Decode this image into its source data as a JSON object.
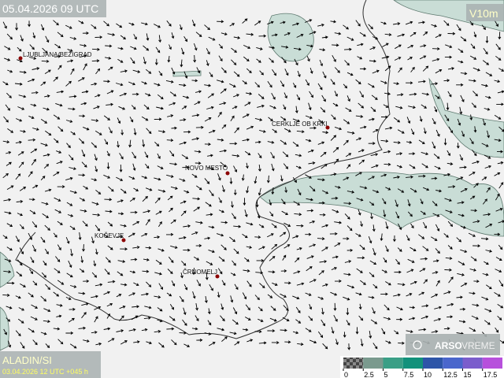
{
  "header": {
    "title": "05.04.2026 09 UTC",
    "field": "V10m"
  },
  "places": [
    {
      "label": "LJUBLJANA/BEŽIGRAD"
    },
    {
      "label": "CERKLJE OB KRKI"
    },
    {
      "label": "NOVO MESTO"
    },
    {
      "label": "KOČEVJE"
    },
    {
      "label": "ČRNOMELJ"
    }
  ],
  "footer": {
    "model": "ALADIN/SI",
    "run": "03.04.2026 12 UTC +045 h",
    "logo_brand": "ARSO",
    "logo_sub": "VREME"
  },
  "legend": {
    "ticks": [
      0,
      2.5,
      5,
      7.5,
      10,
      12.5,
      15,
      17.5
    ],
    "colors": [
      "#7a9a8e",
      "#3a9f86",
      "#12917b",
      "#2d55a8",
      "#4a66cc",
      "#7b5dcc",
      "#b750dc"
    ]
  }
}
